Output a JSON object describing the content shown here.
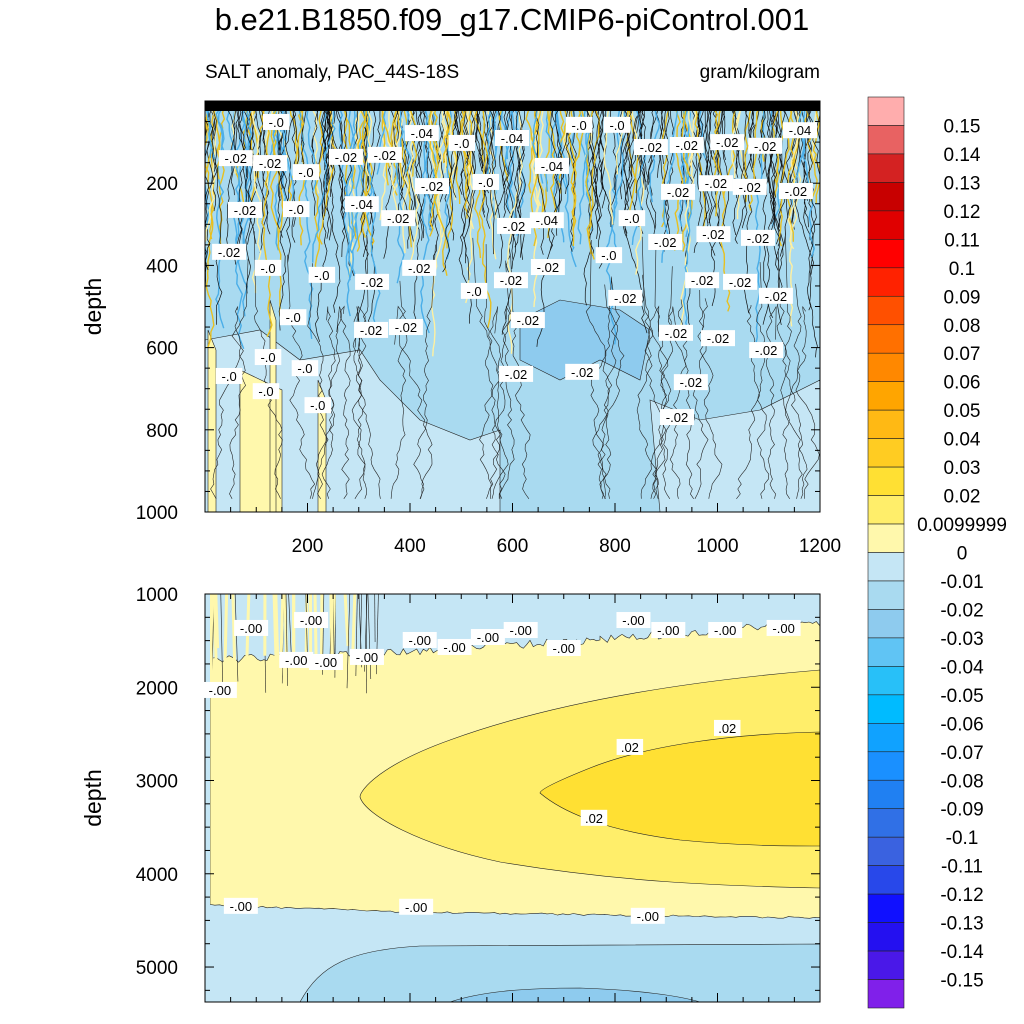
{
  "chart_data": {
    "type": "heatmap",
    "subtype": "filled-contour",
    "title": "b.e21.B1850.f09_g17.CMIP6-piControl.001",
    "left_subtitle": "SALT anomaly, PAC_44S-18S",
    "right_subtitle": "gram/kilogram",
    "panels": [
      {
        "name": "upper",
        "ylabel": "depth",
        "xlim": [
          0,
          1200
        ],
        "ylim": [
          1000,
          0
        ],
        "xticks": [
          "200",
          "400",
          "600",
          "800",
          "1000",
          "1200"
        ],
        "xtick_values": [
          200,
          400,
          600,
          800,
          1000,
          1200
        ],
        "yticks": [
          "200",
          "400",
          "600",
          "800",
          "1000"
        ],
        "ytick_values": [
          200,
          400,
          600,
          800,
          1000
        ]
      },
      {
        "name": "lower",
        "ylabel": "depth",
        "xlim": [
          0,
          1200
        ],
        "ylim": [
          5375,
          1000
        ],
        "xticks": [],
        "xtick_values": [
          200,
          400,
          600,
          800,
          1000,
          1200
        ],
        "yticks": [
          "1000",
          "2000",
          "3000",
          "4000",
          "5000"
        ],
        "ytick_values": [
          1000,
          2000,
          3000,
          4000,
          5000
        ]
      }
    ],
    "colorbar": {
      "labels": [
        "0.15",
        "0.14",
        "0.13",
        "0.12",
        "0.11",
        "0.1",
        "0.09",
        "0.08",
        "0.07",
        "0.06",
        "0.05",
        "0.04",
        "0.03",
        "0.02",
        "0.0099999",
        "0",
        "-0.01",
        "-0.02",
        "-0.03",
        "-0.04",
        "-0.05",
        "-0.06",
        "-0.07",
        "-0.08",
        "-0.09",
        "-0.1",
        "-0.11",
        "-0.12",
        "-0.13",
        "-0.14",
        "-0.15"
      ],
      "colors": [
        "#ffadad",
        "#e86262",
        "#d42222",
        "#c80000",
        "#e00000",
        "#ff0000",
        "#ff2200",
        "#ff5000",
        "#ff7000",
        "#ff8800",
        "#ffa500",
        "#ffb914",
        "#ffcc22",
        "#ffe033",
        "#ffee6a",
        "#fff8ac",
        "#c5e6f5",
        "#a9daf0",
        "#8ecbee",
        "#60c4f4",
        "#28c0f8",
        "#00bbff",
        "#10a2ff",
        "#1a90ff",
        "#2080f2",
        "#3070e6",
        "#3a62e0",
        "#2848ea",
        "#1010ff",
        "#2410f0",
        "#4a18e8",
        "#8020ea"
      ]
    },
    "contour_labels": [
      {
        "panel": 0,
        "text": "-.0",
        "x": 139,
        "depth": 51
      },
      {
        "panel": 0,
        "text": "-.02",
        "x": 60,
        "depth": 139
      },
      {
        "panel": 0,
        "text": "-.02",
        "x": 127,
        "depth": 151
      },
      {
        "panel": 0,
        "text": "-.0",
        "x": 197,
        "depth": 173
      },
      {
        "panel": 0,
        "text": "-.02",
        "x": 275,
        "depth": 136
      },
      {
        "panel": 0,
        "text": "-.02",
        "x": 351,
        "depth": 131
      },
      {
        "panel": 0,
        "text": "-.04",
        "x": 423,
        "depth": 78
      },
      {
        "panel": 0,
        "text": "-.0",
        "x": 501,
        "depth": 102
      },
      {
        "panel": 0,
        "text": "-.04",
        "x": 599,
        "depth": 90
      },
      {
        "panel": 0,
        "text": "-.0",
        "x": 730,
        "depth": 58
      },
      {
        "panel": 0,
        "text": "-.0",
        "x": 804,
        "depth": 58
      },
      {
        "panel": 0,
        "text": "-.02",
        "x": 870,
        "depth": 112
      },
      {
        "panel": 0,
        "text": "-.02",
        "x": 940,
        "depth": 107
      },
      {
        "panel": 0,
        "text": "-.02",
        "x": 1019,
        "depth": 100
      },
      {
        "panel": 0,
        "text": "-.02",
        "x": 1093,
        "depth": 109
      },
      {
        "panel": 0,
        "text": "-.04",
        "x": 1161,
        "depth": 71
      },
      {
        "panel": 0,
        "text": "-.04",
        "x": 677,
        "depth": 158
      },
      {
        "panel": 0,
        "text": "-.02",
        "x": 443,
        "depth": 207
      },
      {
        "panel": 0,
        "text": "-.0",
        "x": 548,
        "depth": 197
      },
      {
        "panel": 0,
        "text": "-.02",
        "x": 923,
        "depth": 221
      },
      {
        "panel": 0,
        "text": "-.02",
        "x": 997,
        "depth": 200
      },
      {
        "panel": 0,
        "text": "-.02",
        "x": 1063,
        "depth": 209
      },
      {
        "panel": 0,
        "text": "-.02",
        "x": 1153,
        "depth": 219
      },
      {
        "panel": 0,
        "text": "-.02",
        "x": 78,
        "depth": 265
      },
      {
        "panel": 0,
        "text": "-.0",
        "x": 178,
        "depth": 263
      },
      {
        "panel": 0,
        "text": "-.04",
        "x": 306,
        "depth": 251
      },
      {
        "panel": 0,
        "text": "-.02",
        "x": 377,
        "depth": 285
      },
      {
        "panel": 0,
        "text": "-.02",
        "x": 603,
        "depth": 304
      },
      {
        "panel": 0,
        "text": "-.04",
        "x": 667,
        "depth": 290
      },
      {
        "panel": 0,
        "text": "-.0",
        "x": 833,
        "depth": 285
      },
      {
        "panel": 0,
        "text": "-.02",
        "x": 992,
        "depth": 324
      },
      {
        "panel": 0,
        "text": "-.02",
        "x": 1079,
        "depth": 333
      },
      {
        "panel": 0,
        "text": "-.02",
        "x": 898,
        "depth": 343
      },
      {
        "panel": 0,
        "text": "-.02",
        "x": 47,
        "depth": 367
      },
      {
        "panel": 0,
        "text": "-.0",
        "x": 123,
        "depth": 406
      },
      {
        "panel": 0,
        "text": "-.0",
        "x": 228,
        "depth": 423
      },
      {
        "panel": 0,
        "text": "-.02",
        "x": 326,
        "depth": 440
      },
      {
        "panel": 0,
        "text": "-.02",
        "x": 418,
        "depth": 406
      },
      {
        "panel": 0,
        "text": "-.02",
        "x": 669,
        "depth": 404
      },
      {
        "panel": 0,
        "text": "-.0",
        "x": 525,
        "depth": 462
      },
      {
        "panel": 0,
        "text": "-.02",
        "x": 597,
        "depth": 436
      },
      {
        "panel": 0,
        "text": "-.0",
        "x": 788,
        "depth": 375
      },
      {
        "panel": 0,
        "text": "-.02",
        "x": 970,
        "depth": 436
      },
      {
        "panel": 0,
        "text": "-.02",
        "x": 1044,
        "depth": 440
      },
      {
        "panel": 0,
        "text": "-.02",
        "x": 1114,
        "depth": 474
      },
      {
        "panel": 0,
        "text": "-.02",
        "x": 820,
        "depth": 479
      },
      {
        "panel": 0,
        "text": "-.0",
        "x": 172,
        "depth": 526
      },
      {
        "panel": 0,
        "text": "-.02",
        "x": 324,
        "depth": 557
      },
      {
        "panel": 0,
        "text": "-.02",
        "x": 392,
        "depth": 550
      },
      {
        "panel": 0,
        "text": "-.02",
        "x": 630,
        "depth": 533
      },
      {
        "panel": 0,
        "text": "-.02",
        "x": 919,
        "depth": 564
      },
      {
        "panel": 0,
        "text": "-.02",
        "x": 1001,
        "depth": 577
      },
      {
        "panel": 0,
        "text": "-.02",
        "x": 1095,
        "depth": 606
      },
      {
        "panel": 0,
        "text": "-.0",
        "x": 123,
        "depth": 623
      },
      {
        "panel": 0,
        "text": "-.0",
        "x": 47,
        "depth": 669
      },
      {
        "panel": 0,
        "text": "-.0",
        "x": 195,
        "depth": 650
      },
      {
        "panel": 0,
        "text": "-.0",
        "x": 119,
        "depth": 706
      },
      {
        "panel": 0,
        "text": "-.0",
        "x": 220,
        "depth": 740
      },
      {
        "panel": 0,
        "text": "-.02",
        "x": 607,
        "depth": 664
      },
      {
        "panel": 0,
        "text": "-.02",
        "x": 736,
        "depth": 659
      },
      {
        "panel": 0,
        "text": "-.02",
        "x": 948,
        "depth": 684
      },
      {
        "panel": 0,
        "text": "-.02",
        "x": 921,
        "depth": 769
      },
      {
        "panel": 1,
        "text": "-.00",
        "x": 207,
        "depth": 1279
      },
      {
        "panel": 1,
        "text": "-.00",
        "x": 90,
        "depth": 1364
      },
      {
        "panel": 1,
        "text": "-.00",
        "x": 178,
        "depth": 1707
      },
      {
        "panel": 1,
        "text": "-.00",
        "x": 236,
        "depth": 1729
      },
      {
        "panel": 1,
        "text": "-.00",
        "x": 316,
        "depth": 1675
      },
      {
        "panel": 1,
        "text": "-.00",
        "x": 419,
        "depth": 1493
      },
      {
        "panel": 1,
        "text": "-.00",
        "x": 487,
        "depth": 1568
      },
      {
        "panel": 1,
        "text": "-.00",
        "x": 552,
        "depth": 1461
      },
      {
        "panel": 1,
        "text": "-.00",
        "x": 616,
        "depth": 1386
      },
      {
        "panel": 1,
        "text": "-.00",
        "x": 700,
        "depth": 1579
      },
      {
        "panel": 1,
        "text": "-.00",
        "x": 836,
        "depth": 1279
      },
      {
        "panel": 1,
        "text": "-.00",
        "x": 904,
        "depth": 1386
      },
      {
        "panel": 1,
        "text": "-.00",
        "x": 1015,
        "depth": 1386
      },
      {
        "panel": 1,
        "text": "-.00",
        "x": 1129,
        "depth": 1364
      },
      {
        "panel": 1,
        "text": "-.00",
        "x": 29,
        "depth": 2029
      },
      {
        "panel": 1,
        "text": ".02",
        "x": 1019,
        "depth": 2436
      },
      {
        "panel": 1,
        "text": ".02",
        "x": 829,
        "depth": 2640
      },
      {
        "panel": 1,
        "text": ".02",
        "x": 759,
        "depth": 3400
      },
      {
        "panel": 1,
        "text": "-.00",
        "x": 70,
        "depth": 4344
      },
      {
        "panel": 1,
        "text": "-.00",
        "x": 412,
        "depth": 4354
      },
      {
        "panel": 1,
        "text": "-.00",
        "x": 864,
        "depth": 4451
      }
    ]
  }
}
